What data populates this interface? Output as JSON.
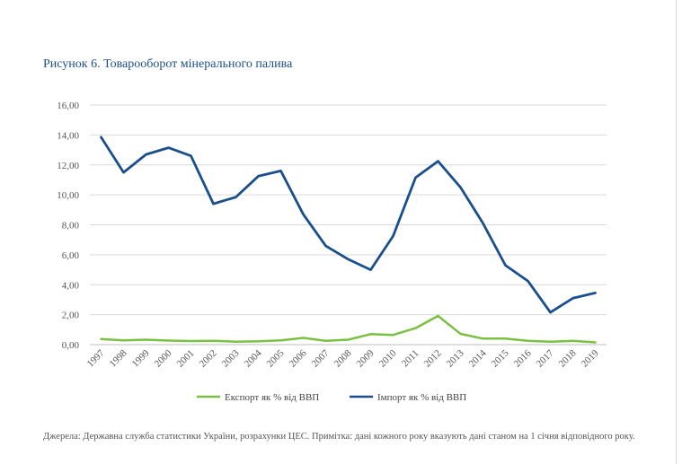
{
  "title": "Рисунок 6. Товарооборот мінерального палива",
  "source_note": "Джерела: Державна служба статистики України, розрахунки ЦЕС. Примітка: дані кожного року вказують дані станом на 1 січня відповідного року.",
  "chart_data": {
    "type": "line",
    "categories": [
      "1997",
      "1998",
      "1999",
      "2000",
      "2001",
      "2002",
      "2003",
      "2004",
      "2005",
      "2006",
      "2007",
      "2008",
      "2009",
      "2010",
      "2011",
      "2012",
      "2013",
      "2014",
      "2015",
      "2016",
      "2017",
      "2018",
      "2019"
    ],
    "y_tick_labels": [
      "0,00",
      "2,00",
      "4,00",
      "6,00",
      "8,00",
      "10,00",
      "12,00",
      "14,00",
      "16,00"
    ],
    "ylim": [
      0,
      16
    ],
    "grid": true,
    "legend_position": "bottom",
    "series": [
      {
        "name": "Експорт як % від ВВП",
        "color": "#7ac143",
        "values": [
          0.38,
          0.28,
          0.33,
          0.27,
          0.24,
          0.26,
          0.2,
          0.22,
          0.28,
          0.45,
          0.26,
          0.33,
          0.7,
          0.65,
          1.1,
          1.92,
          0.72,
          0.4,
          0.4,
          0.25,
          0.2,
          0.25,
          0.15
        ]
      },
      {
        "name": "Імпорт як % від ВВП",
        "color": "#1a4f8c",
        "values": [
          13.85,
          11.5,
          12.7,
          13.15,
          12.6,
          9.4,
          9.85,
          11.25,
          11.6,
          8.7,
          6.6,
          5.7,
          5.0,
          7.25,
          11.15,
          12.25,
          10.5,
          8.1,
          5.3,
          4.25,
          2.15,
          3.1,
          3.45
        ]
      }
    ]
  }
}
